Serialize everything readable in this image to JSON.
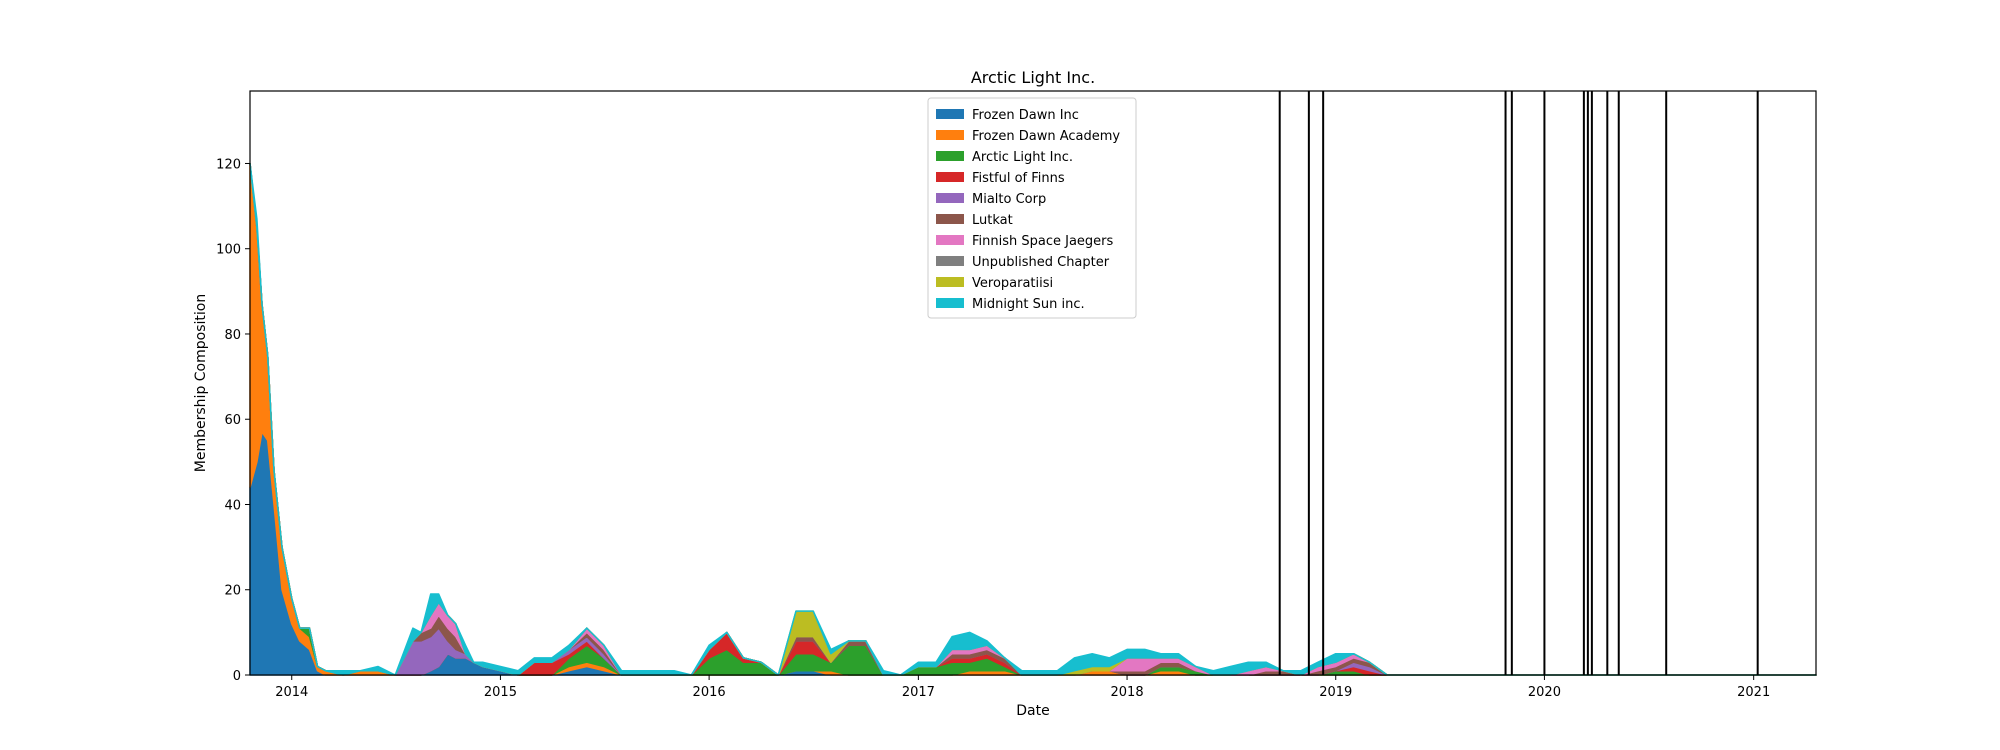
{
  "chart_data": {
    "type": "area",
    "stacked": true,
    "title": "Arctic Light Inc.",
    "xlabel": "Date",
    "ylabel": "Membership Composition",
    "xlim": [
      "2013-10-20",
      "2021-04-20"
    ],
    "ylim": [
      0,
      137
    ],
    "x_ticks": [
      "2014",
      "2015",
      "2016",
      "2017",
      "2018",
      "2019",
      "2020",
      "2021"
    ],
    "y_ticks": [
      0,
      20,
      40,
      60,
      80,
      100,
      120
    ],
    "legend_position": "top-center",
    "x": [
      "2013-10-20",
      "2013-11-01",
      "2013-11-10",
      "2013-11-20",
      "2013-12-01",
      "2013-12-15",
      "2014-01-01",
      "2014-01-15",
      "2014-02-01",
      "2014-02-15",
      "2014-03-01",
      "2014-04-01",
      "2014-05-01",
      "2014-06-01",
      "2014-07-01",
      "2014-08-01",
      "2014-08-15",
      "2014-09-01",
      "2014-09-15",
      "2014-10-01",
      "2014-10-15",
      "2014-11-01",
      "2014-11-15",
      "2014-12-01",
      "2015-01-01",
      "2015-02-01",
      "2015-03-01",
      "2015-04-01",
      "2015-05-01",
      "2015-06-01",
      "2015-07-01",
      "2015-08-01",
      "2015-09-01",
      "2015-10-01",
      "2015-11-01",
      "2015-12-01",
      "2016-01-01",
      "2016-02-01",
      "2016-03-01",
      "2016-04-01",
      "2016-05-01",
      "2016-06-01",
      "2016-07-01",
      "2016-08-01",
      "2016-09-01",
      "2016-10-01",
      "2016-11-01",
      "2016-12-01",
      "2017-01-01",
      "2017-02-01",
      "2017-03-01",
      "2017-04-01",
      "2017-05-01",
      "2017-06-01",
      "2017-07-01",
      "2017-08-01",
      "2017-09-01",
      "2017-10-01",
      "2017-11-01",
      "2017-12-01",
      "2018-01-01",
      "2018-02-01",
      "2018-03-01",
      "2018-04-01",
      "2018-05-01",
      "2018-06-01",
      "2018-07-01",
      "2018-08-01",
      "2018-09-01",
      "2018-10-01",
      "2018-11-01",
      "2018-12-01",
      "2019-01-01",
      "2019-02-01",
      "2019-03-01",
      "2019-04-01",
      "2019-05-01",
      "2020-01-01",
      "2021-04-20"
    ],
    "series": [
      {
        "name": "Frozen Dawn Inc",
        "color": "#1f77b4",
        "values": [
          44,
          50,
          57,
          55,
          40,
          20,
          12,
          8,
          6,
          1,
          0,
          0,
          0,
          0,
          0,
          0,
          0,
          1,
          2,
          5,
          4,
          4,
          3,
          2,
          1,
          0,
          0,
          0,
          1,
          2,
          1,
          0,
          0,
          0,
          0,
          0,
          0,
          0,
          0,
          0,
          0,
          1,
          1,
          0,
          0,
          0,
          0,
          0,
          0,
          0,
          0,
          0,
          0,
          0,
          0,
          0,
          0,
          0,
          0,
          0,
          0,
          0,
          0,
          0,
          0,
          0,
          0,
          0,
          0,
          0,
          0,
          0,
          0,
          0,
          0,
          0,
          0,
          0,
          0
        ]
      },
      {
        "name": "Frozen Dawn Academy",
        "color": "#ff7f0e",
        "values": [
          76,
          55,
          30,
          20,
          8,
          10,
          6,
          3,
          3,
          1,
          1,
          0,
          1,
          1,
          0,
          0,
          0,
          0,
          0,
          0,
          0,
          0,
          0,
          0,
          0,
          0,
          0,
          0,
          1,
          1,
          1,
          0,
          0,
          0,
          0,
          0,
          0,
          0,
          0,
          0,
          0,
          0,
          0,
          1,
          0,
          0,
          0,
          0,
          0,
          0,
          0,
          1,
          1,
          1,
          0,
          0,
          0,
          0,
          1,
          1,
          0,
          0,
          1,
          1,
          0,
          0,
          0,
          0,
          0,
          0,
          0,
          0,
          0,
          0,
          0,
          0,
          0,
          0,
          0
        ]
      },
      {
        "name": "Arctic Light Inc.",
        "color": "#2ca02c",
        "values": [
          0,
          0,
          0,
          0,
          0,
          0,
          0,
          0,
          2,
          0,
          0,
          0,
          0,
          0,
          0,
          0,
          0,
          0,
          0,
          0,
          0,
          0,
          0,
          0,
          0,
          0,
          0,
          0,
          2,
          4,
          2,
          0,
          0,
          0,
          0,
          0,
          4,
          6,
          3,
          3,
          0,
          4,
          4,
          2,
          7,
          7,
          0,
          0,
          2,
          2,
          3,
          2,
          3,
          1,
          0,
          0,
          0,
          0,
          0,
          0,
          0,
          0,
          1,
          1,
          1,
          0,
          0,
          0,
          0,
          0,
          0,
          0,
          1,
          1,
          0,
          0,
          0,
          0,
          0
        ]
      },
      {
        "name": "Fistful of Finns",
        "color": "#d62728",
        "values": [
          0,
          0,
          0,
          0,
          0,
          0,
          0,
          0,
          0,
          0,
          0,
          0,
          0,
          0,
          0,
          0,
          0,
          0,
          0,
          0,
          0,
          0,
          0,
          0,
          0,
          0,
          3,
          3,
          1,
          1,
          0,
          0,
          0,
          0,
          0,
          0,
          2,
          4,
          1,
          0,
          0,
          3,
          3,
          0,
          0,
          0,
          0,
          0,
          0,
          0,
          1,
          1,
          1,
          1,
          0,
          0,
          0,
          0,
          0,
          0,
          0,
          0,
          0,
          0,
          0,
          0,
          0,
          0,
          0,
          0,
          0,
          0,
          0,
          1,
          1,
          0,
          0,
          0,
          0
        ]
      },
      {
        "name": "Mialto Corp",
        "color": "#9467bd",
        "values": [
          0,
          0,
          0,
          0,
          0,
          0,
          0,
          0,
          0,
          0,
          0,
          0,
          0,
          0,
          0,
          8,
          8,
          8,
          9,
          3,
          2,
          1,
          0,
          0,
          0,
          0,
          0,
          0,
          1,
          1,
          1,
          0,
          0,
          0,
          0,
          0,
          0,
          0,
          0,
          0,
          0,
          0,
          0,
          0,
          0,
          0,
          0,
          0,
          0,
          0,
          0,
          0,
          0,
          0,
          0,
          0,
          0,
          0,
          0,
          0,
          0,
          0,
          0,
          0,
          0,
          0,
          0,
          0,
          0,
          0,
          0,
          0,
          0,
          1,
          1,
          0,
          0,
          0,
          0
        ]
      },
      {
        "name": "Lutkat",
        "color": "#8c564b",
        "values": [
          0,
          0,
          0,
          0,
          0,
          0,
          0,
          0,
          0,
          0,
          0,
          0,
          0,
          0,
          0,
          0,
          2,
          2,
          3,
          3,
          3,
          0,
          0,
          0,
          0,
          0,
          0,
          0,
          0,
          1,
          1,
          0,
          0,
          0,
          0,
          0,
          0,
          0,
          0,
          0,
          0,
          1,
          1,
          0,
          1,
          1,
          0,
          0,
          0,
          0,
          1,
          1,
          1,
          1,
          0,
          0,
          0,
          0,
          0,
          0,
          1,
          1,
          1,
          1,
          0,
          0,
          0,
          0,
          1,
          1,
          0,
          1,
          1,
          1,
          1,
          0,
          0,
          0,
          0
        ]
      },
      {
        "name": "Finnish Space Jaegers",
        "color": "#e377c2",
        "values": [
          0,
          0,
          0,
          0,
          0,
          0,
          0,
          0,
          0,
          0,
          0,
          0,
          0,
          0,
          0,
          0,
          0,
          3,
          3,
          3,
          3,
          0,
          0,
          0,
          0,
          0,
          0,
          0,
          0,
          1,
          1,
          0,
          0,
          0,
          0,
          0,
          0,
          0,
          0,
          0,
          0,
          0,
          0,
          0,
          0,
          0,
          0,
          0,
          0,
          0,
          1,
          1,
          1,
          0,
          0,
          0,
          0,
          0,
          0,
          0,
          3,
          3,
          1,
          1,
          1,
          0,
          0,
          1,
          1,
          0,
          0,
          1,
          1,
          1,
          0,
          0,
          0,
          0,
          0
        ]
      },
      {
        "name": "Unpublished Chapter",
        "color": "#7f7f7f",
        "values": [
          0,
          0,
          0,
          0,
          0,
          0,
          0,
          0,
          0,
          0,
          0,
          0,
          0,
          0,
          0,
          0,
          0,
          0,
          0,
          0,
          0,
          0,
          0,
          0,
          0,
          0,
          0,
          0,
          0,
          0,
          0,
          0,
          0,
          0,
          0,
          0,
          0,
          0,
          0,
          0,
          0,
          0,
          0,
          0,
          0,
          0,
          0,
          0,
          0,
          0,
          0,
          0,
          0,
          0,
          0,
          0,
          0,
          0,
          0,
          0,
          0,
          0,
          0,
          0,
          0,
          0,
          0,
          0,
          0,
          0,
          0,
          0,
          0,
          0,
          0,
          0,
          0,
          0,
          0
        ]
      },
      {
        "name": "Veroparatiisi",
        "color": "#bcbd22",
        "values": [
          0,
          0,
          0,
          0,
          0,
          0,
          0,
          0,
          0,
          0,
          0,
          0,
          0,
          0,
          0,
          0,
          0,
          0,
          0,
          0,
          0,
          0,
          0,
          0,
          0,
          0,
          0,
          0,
          0,
          0,
          0,
          0,
          0,
          0,
          0,
          0,
          0,
          0,
          0,
          0,
          0,
          6,
          6,
          2,
          0,
          0,
          0,
          0,
          0,
          0,
          0,
          0,
          0,
          0,
          0,
          0,
          0,
          1,
          1,
          1,
          0,
          0,
          0,
          0,
          0,
          0,
          0,
          0,
          0,
          0,
          0,
          0,
          0,
          0,
          0,
          0,
          0,
          0,
          0
        ]
      },
      {
        "name": "Midnight Sun inc.",
        "color": "#17becf",
        "values": [
          0,
          2,
          0,
          0,
          0,
          0,
          0,
          0,
          0,
          0,
          0,
          1,
          0,
          1,
          0,
          3,
          0,
          5,
          2,
          0,
          0,
          2,
          0,
          1,
          1,
          1,
          1,
          1,
          1,
          0,
          0,
          1,
          1,
          1,
          1,
          0,
          1,
          0,
          0,
          0,
          0,
          0,
          0,
          1,
          0,
          0,
          1,
          0,
          1,
          1,
          3,
          4,
          1,
          0,
          1,
          1,
          1,
          3,
          3,
          2,
          2,
          2,
          1,
          1,
          0,
          1,
          2,
          2,
          1,
          0,
          1,
          1,
          2,
          0,
          0,
          0,
          0,
          0,
          0
        ]
      }
    ],
    "event_lines": [
      "2018-09-25",
      "2018-11-15",
      "2018-12-10",
      "2019-10-25",
      "2019-11-05",
      "2020-01-01",
      "2020-03-10",
      "2020-03-17",
      "2020-03-24",
      "2020-04-20",
      "2020-05-10",
      "2020-08-01",
      "2021-01-08"
    ]
  }
}
